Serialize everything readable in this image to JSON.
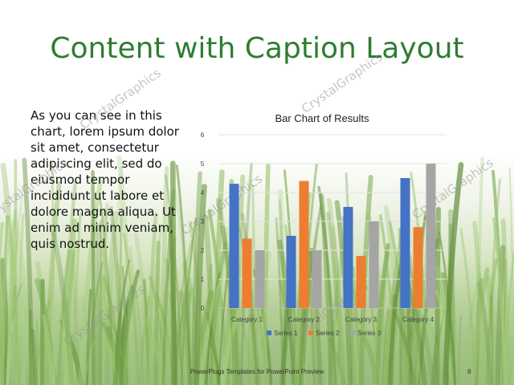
{
  "slide": {
    "title": "Content with Caption Layout",
    "caption": "As you can see in this chart, lorem ipsum dolor sit amet, consectetur adipiscing elit, sed do eiusmod tempor incididunt ut labore et dolore magna aliqua. Ut enim ad minim veniam, quis nostrud.",
    "footer": "PowerPlugs Templates for PowerPoint  Preview",
    "page_number": "8",
    "watermark": "CrystalGraphics"
  },
  "colors": {
    "title": "#2e7d32",
    "series_1": "#4472c4",
    "series_2": "#ed7d31",
    "series_3": "#a5a5a5"
  },
  "chart_data": {
    "type": "bar",
    "title": "Bar Chart of Results",
    "categories": [
      "Category 1",
      "Category 2",
      "Category 3",
      "Category 4"
    ],
    "series": [
      {
        "name": "Series 1",
        "values": [
          4.3,
          2.5,
          3.5,
          4.5
        ]
      },
      {
        "name": "Series 2",
        "values": [
          2.4,
          4.4,
          1.8,
          2.8
        ]
      },
      {
        "name": "Series 3",
        "values": [
          2,
          2,
          3,
          5
        ]
      }
    ],
    "ylim": [
      0,
      6
    ],
    "yticks": [
      "0",
      "1",
      "2",
      "3",
      "4",
      "5",
      "6"
    ],
    "grid": true,
    "legend": "bottom"
  }
}
